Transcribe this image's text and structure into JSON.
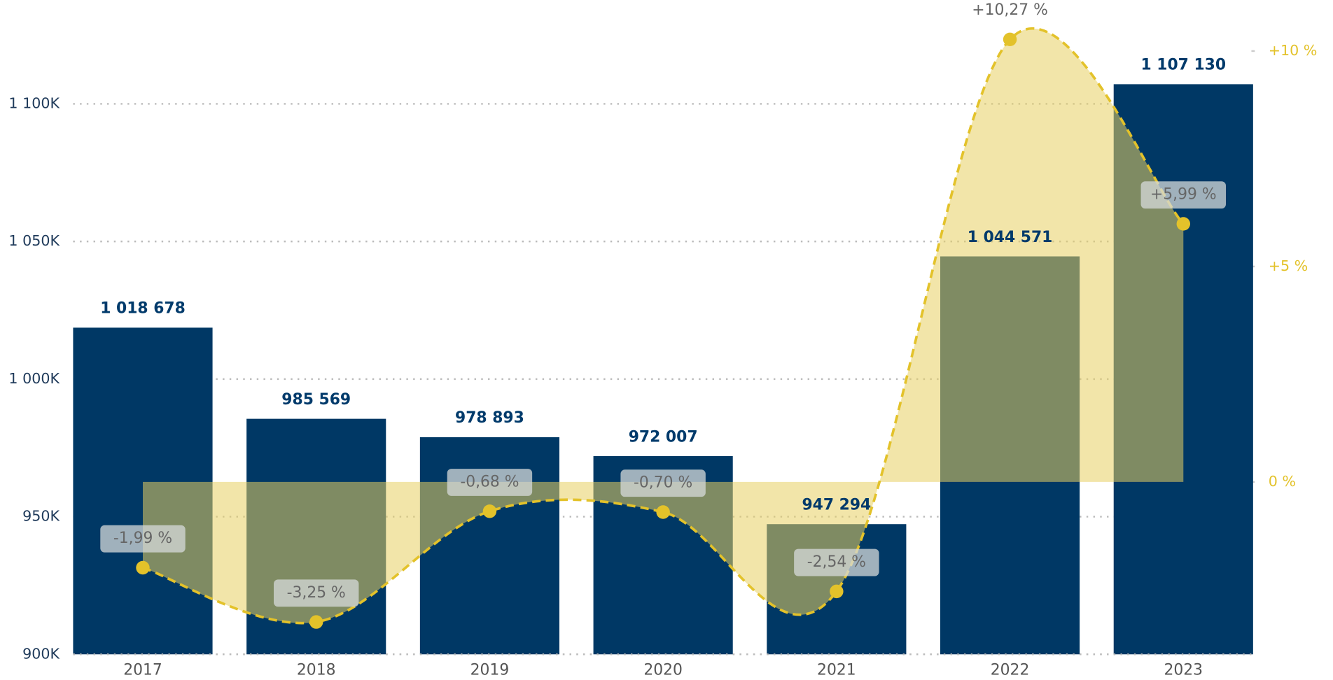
{
  "chart_data": {
    "type": "bar",
    "categories": [
      "2017",
      "2018",
      "2019",
      "2020",
      "2021",
      "2022",
      "2023"
    ],
    "series": [
      {
        "color": "#003865",
        "values": [
          1018678,
          985569,
          978893,
          972007,
          947294,
          1044571,
          1107130
        ],
        "value_labels": [
          "1 018 678",
          "985 569",
          "978 893",
          "972 007",
          "947 294",
          "1 044 571",
          "1 107 130"
        ]
      },
      {
        "color": "#e3c22a",
        "axis": "y2",
        "values": [
          -1.99,
          -3.25,
          -0.68,
          -0.7,
          -2.54,
          10.27,
          5.99
        ],
        "value_labels": [
          "-1,99 %",
          "-3,25 %",
          "-0,68 %",
          "-0,70 %",
          "-2,54 %",
          "+10,27 %",
          "+5,99 %"
        ]
      }
    ],
    "ylim": [
      900000,
      1137654
    ],
    "yticks": [
      {
        "value": 900000,
        "label": "900K"
      },
      {
        "value": 950000,
        "label": "950K"
      },
      {
        "value": 1000000,
        "label": "1 000K"
      },
      {
        "value": 1050000,
        "label": "1 050K"
      },
      {
        "value": 1100000,
        "label": "1 100K"
      }
    ],
    "y2lim": [
      -4.0,
      11.18
    ],
    "y2ticks": [
      {
        "value": 0,
        "label": "0 %"
      },
      {
        "value": 5,
        "label": "+5 %"
      },
      {
        "value": 10,
        "label": "+10 %"
      }
    ],
    "grid": true
  }
}
